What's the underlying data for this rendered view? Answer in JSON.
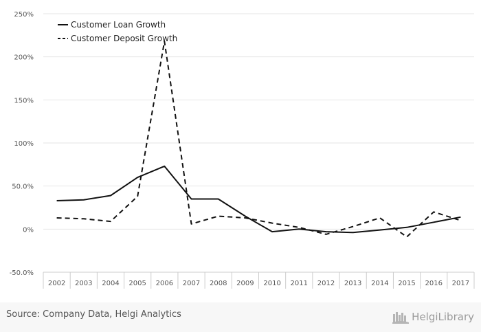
{
  "chart_data": {
    "type": "line",
    "x": [
      "2002",
      "2003",
      "2004",
      "2005",
      "2006",
      "2007",
      "2008",
      "2009",
      "2010",
      "2011",
      "2012",
      "2013",
      "2014",
      "2015",
      "2016",
      "2017"
    ],
    "series": [
      {
        "name": "Customer Loan Growth",
        "style": "solid",
        "values": [
          33,
          34,
          39,
          60,
          73,
          35,
          35,
          15,
          -3,
          0,
          -3,
          -4,
          -1,
          2,
          8,
          14
        ]
      },
      {
        "name": "Customer Deposit Growth",
        "style": "dashed",
        "values": [
          13,
          12,
          9,
          38,
          218,
          6,
          15,
          13,
          7,
          2,
          -6,
          3,
          13,
          -9,
          20,
          10
        ]
      }
    ],
    "ylim": [
      -50,
      250
    ],
    "yticks": [
      {
        "value": 250,
        "label": "250%"
      },
      {
        "value": 200,
        "label": "200%"
      },
      {
        "value": 150,
        "label": "150%"
      },
      {
        "value": 100,
        "label": "100%"
      },
      {
        "value": 50,
        "label": "50.0%"
      },
      {
        "value": 0,
        "label": "0%"
      },
      {
        "value": -50,
        "label": "-50.0%"
      }
    ],
    "grid": true,
    "legend": "top-left",
    "colors": {
      "line": "#111111",
      "grid": "#e6e6e6",
      "axis": "#cccccc",
      "tick_text": "#555555"
    }
  },
  "footer": {
    "source": "Source: Company Data, Helgi Analytics",
    "brand": "HelgiLibrary"
  }
}
